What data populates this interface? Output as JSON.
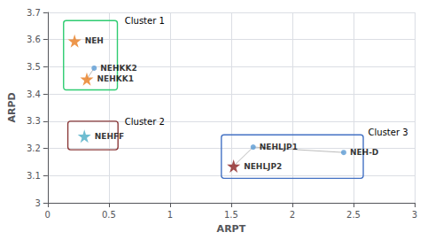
{
  "chart_data": {
    "type": "scatter",
    "title": "",
    "xlabel": "ARPT",
    "ylabel": "ARPD",
    "xlim": [
      0,
      3
    ],
    "ylim": [
      3.0,
      3.7
    ],
    "xticks": [
      0,
      0.5,
      1,
      1.5,
      2,
      2.5,
      3
    ],
    "yticks": [
      3.0,
      3.1,
      3.2,
      3.3,
      3.4,
      3.5,
      3.6,
      3.7
    ],
    "grid": true,
    "points": [
      {
        "label": "NEH",
        "x": 0.22,
        "y": 3.595,
        "marker": "star",
        "color": "#E87C1E"
      },
      {
        "label": "NEHKK2",
        "x": 0.38,
        "y": 3.495,
        "marker": "circle",
        "color": "#5B9BD5"
      },
      {
        "label": "NEHKK1",
        "x": 0.32,
        "y": 3.455,
        "marker": "star",
        "color": "#E87C1E"
      },
      {
        "label": "NEHFF",
        "x": 0.3,
        "y": 3.245,
        "marker": "star",
        "color": "#4BACC6"
      },
      {
        "label": "NEHLJP1",
        "x": 1.68,
        "y": 3.205,
        "marker": "circle",
        "color": "#5B9BD5"
      },
      {
        "label": "NEHLJP2",
        "x": 1.52,
        "y": 3.135,
        "marker": "star",
        "color": "#8B2020"
      },
      {
        "label": "NEH-D",
        "x": 2.42,
        "y": 3.185,
        "marker": "circle",
        "color": "#5B9BD5"
      }
    ],
    "connectors": [
      {
        "x1": 0.32,
        "y1": 3.455,
        "x2": 0.38,
        "y2": 3.495
      },
      {
        "x1": 1.52,
        "y1": 3.135,
        "x2": 1.68,
        "y2": 3.205
      },
      {
        "x1": 1.68,
        "y1": 3.205,
        "x2": 2.42,
        "y2": 3.185
      }
    ],
    "clusters": [
      {
        "label": "Cluster 1",
        "x": 0.13,
        "y": 3.415,
        "width": 0.44,
        "height": 0.255,
        "color": "#2ECC71",
        "label_x": 0.63,
        "label_y": 3.685
      },
      {
        "label": "Cluster 2",
        "x": 0.165,
        "y": 3.195,
        "width": 0.41,
        "height": 0.105,
        "color": "#8B3A3A",
        "label_x": 0.63,
        "label_y": 3.315
      },
      {
        "label": "Cluster 3",
        "x": 1.42,
        "y": 3.09,
        "width": 1.16,
        "height": 0.16,
        "color": "#4472C4",
        "label_x": 2.62,
        "label_y": 3.275
      }
    ]
  }
}
